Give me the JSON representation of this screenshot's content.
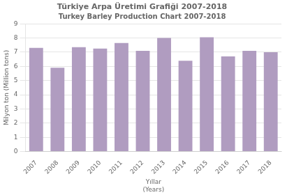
{
  "chart_data": {
    "type": "bar",
    "title": "Türkiye Arpa Üretimi Grafiği 2007-2018",
    "subtitle": "Turkey Barley Production Chart 2007-2018",
    "ylabel": "Milyon ton (Million tons)",
    "xlabel": "Yıllar\n(Years)",
    "categories": [
      "2007",
      "2008",
      "2009",
      "2010",
      "2011",
      "2012",
      "2013",
      "2014",
      "2015",
      "2016",
      "2017",
      "2018"
    ],
    "values": [
      7.3,
      5.9,
      7.35,
      7.25,
      7.65,
      7.1,
      8.0,
      6.4,
      8.05,
      6.7,
      7.1,
      7.0
    ],
    "color": "#b09cc0",
    "ylim": [
      0,
      9
    ],
    "yticks": [
      0,
      1,
      2,
      3,
      4,
      5,
      6,
      7,
      8,
      9
    ],
    "grid": true
  }
}
